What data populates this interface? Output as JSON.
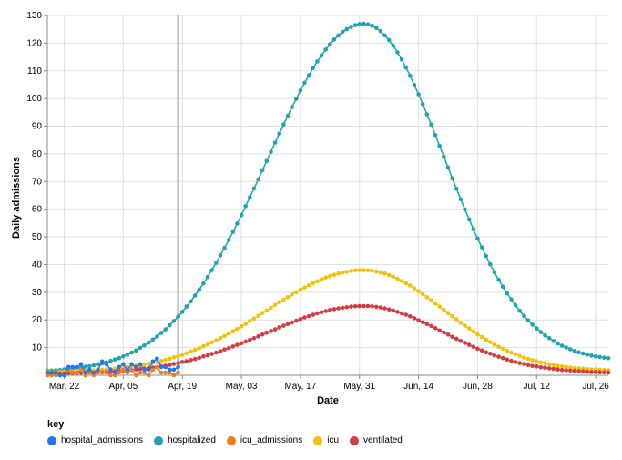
{
  "chart_data": {
    "type": "line",
    "ylabel": "Daily admissions",
    "xlabel": "Date",
    "ylim": [
      0,
      130
    ],
    "y_ticks": [
      10,
      20,
      30,
      40,
      50,
      60,
      70,
      80,
      90,
      100,
      110,
      120,
      130
    ],
    "x_range": [
      "2020-03-18",
      "2020-07-29"
    ],
    "x_ticks": [
      {
        "date": "2020-03-22",
        "label": "Mar, 22"
      },
      {
        "date": "2020-04-05",
        "label": "Apr, 05"
      },
      {
        "date": "2020-04-19",
        "label": "Apr, 19"
      },
      {
        "date": "2020-05-03",
        "label": "May, 03"
      },
      {
        "date": "2020-05-17",
        "label": "May, 17"
      },
      {
        "date": "2020-05-31",
        "label": "May, 31"
      },
      {
        "date": "2020-06-14",
        "label": "Jun, 14"
      },
      {
        "date": "2020-06-28",
        "label": "Jun, 28"
      },
      {
        "date": "2020-07-12",
        "label": "Jul, 12"
      },
      {
        "date": "2020-07-26",
        "label": "Jul, 26"
      }
    ],
    "reference_line": "2020-04-18",
    "grid": true,
    "legend_position": "bottom-left",
    "legend_title": "key",
    "series": [
      {
        "name": "hospital_admissions",
        "color": "#1f77f5",
        "x_start": "2020-03-18",
        "values": [
          1,
          1,
          1,
          0,
          0,
          3,
          3,
          3,
          4,
          1,
          2,
          1,
          2,
          5,
          4,
          2,
          1,
          3,
          4,
          2,
          4,
          3,
          4,
          2,
          2,
          5,
          6,
          3,
          3,
          2,
          2,
          3
        ]
      },
      {
        "name": "hospitalized",
        "color": "#1fa3b3",
        "x_start": "2020-03-18",
        "peak_date": "2020-06-01",
        "peak": 127,
        "start_level": 1,
        "end_level": 5,
        "rise_width": 23,
        "fall_width": 19
      },
      {
        "name": "icu_admissions",
        "color": "#f47a1f",
        "x_start": "2020-03-18",
        "values": [
          0,
          0,
          0,
          0,
          0,
          2,
          1,
          1,
          2,
          0,
          1,
          0,
          1,
          1,
          1,
          0,
          0,
          1,
          2,
          1,
          2,
          0,
          1,
          1,
          0,
          2,
          3,
          1,
          1,
          1,
          0,
          1
        ]
      },
      {
        "name": "icu",
        "color": "#f4c20d",
        "x_start": "2020-03-18",
        "peak_date": "2020-06-01",
        "peak": 38,
        "start_level": 1,
        "end_level": 1.5,
        "rise_width": 23,
        "fall_width": 19
      },
      {
        "name": "ventilated",
        "color": "#d63b42",
        "x_start": "2020-03-18",
        "peak_date": "2020-06-01",
        "peak": 25,
        "start_level": 0.5,
        "end_level": 0.8,
        "rise_width": 23,
        "fall_width": 19
      }
    ]
  }
}
